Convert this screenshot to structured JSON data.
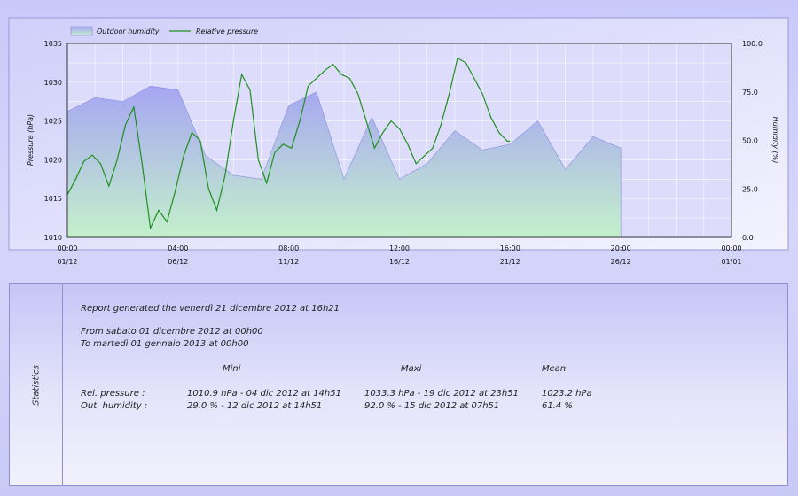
{
  "colors": {
    "humidity_top": "#a6a6f2",
    "humidity_bottom": "#c4f0cc",
    "pressure_line": "#1f8f1f",
    "plot_bg": "#ddddfb",
    "grid": "#ffffff"
  },
  "chart_data": {
    "type": "area",
    "legend": {
      "placement": "top-left",
      "items": [
        "Outdoor humidity",
        "Relative pressure"
      ]
    },
    "grid": true,
    "x_ticks": [
      {
        "time": "00:00",
        "date": "01/12"
      },
      {
        "time": "04:00",
        "date": "06/12"
      },
      {
        "time": "08:00",
        "date": "11/12"
      },
      {
        "time": "12:00",
        "date": "16/12"
      },
      {
        "time": "16:00",
        "date": "21/12"
      },
      {
        "time": "20:00",
        "date": "26/12"
      },
      {
        "time": "00:00",
        "date": "01/01"
      }
    ],
    "left_axis": {
      "label": "Pressure (hPa)",
      "ylim": [
        1010,
        1035
      ],
      "ticks": [
        "1035",
        "1030",
        "1025",
        "1020",
        "1015",
        "1010"
      ]
    },
    "right_axis": {
      "label": "Humidity (%)",
      "ylim": [
        0,
        100
      ],
      "ticks": [
        "100.0",
        "75.0",
        "50.0",
        "25.0",
        "0.0"
      ]
    },
    "series": [
      {
        "name": "Outdoor humidity",
        "axis": "right",
        "style": "area",
        "x": [
          0,
          1,
          2,
          3,
          4,
          5,
          6,
          7,
          8,
          9,
          10,
          11,
          12,
          13,
          14,
          15,
          16,
          17,
          18,
          19,
          20
        ],
        "y": [
          65,
          72,
          70,
          78,
          76,
          42,
          32,
          30,
          68,
          75,
          30,
          62,
          30,
          38,
          55,
          45,
          48,
          60,
          35,
          52,
          46
        ]
      },
      {
        "name": "Relative pressure",
        "axis": "left",
        "style": "line",
        "x": [
          0,
          0.3,
          0.6,
          0.9,
          1.2,
          1.5,
          1.8,
          2.1,
          2.4,
          2.7,
          3.0,
          3.3,
          3.6,
          3.9,
          4.2,
          4.5,
          4.8,
          5.1,
          5.4,
          5.7,
          6.0,
          6.3,
          6.6,
          6.9,
          7.2,
          7.5,
          7.8,
          8.1,
          8.4,
          8.7,
          9.0,
          9.3,
          9.6,
          9.9,
          10.2,
          10.5,
          10.8,
          11.1,
          11.4,
          11.7,
          12.0,
          12.3,
          12.6,
          12.9,
          13.2,
          13.5,
          13.8,
          14.1,
          14.4,
          14.7,
          15.0,
          15.3,
          15.6,
          15.9,
          16.0
        ],
        "y": [
          1015.5,
          1017.5,
          1019.8,
          1020.6,
          1019.5,
          1016.6,
          1020.0,
          1024.5,
          1026.8,
          1019.5,
          1011.2,
          1013.5,
          1012.0,
          1016.0,
          1020.5,
          1023.5,
          1022.5,
          1016.3,
          1013.5,
          1018.0,
          1025.0,
          1031.0,
          1029.0,
          1020.0,
          1017.0,
          1021.0,
          1022.0,
          1021.5,
          1025.0,
          1029.5,
          1030.5,
          1031.5,
          1032.3,
          1031.0,
          1030.5,
          1028.5,
          1025.0,
          1021.5,
          1023.5,
          1025.0,
          1024.0,
          1022.0,
          1019.5,
          1020.5,
          1021.5,
          1024.5,
          1028.5,
          1033.1,
          1032.5,
          1030.5,
          1028.5,
          1025.5,
          1023.5,
          1022.4,
          1022.4
        ]
      }
    ]
  },
  "stats": {
    "title": "Statistics",
    "generated": "Report generated the venerdì 21 dicembre 2012 at 16h21",
    "from": "From sabato 01 dicembre 2012 at 00h00",
    "to": "To martedì 01 gennaio 2013 at 00h00",
    "col_min": "Mini",
    "col_max": "Maxi",
    "col_mean": "Mean",
    "rows": [
      {
        "label": "Rel. pressure :",
        "min": "1010.9 hPa - 04 dic 2012 at 14h51",
        "max": "1033.3 hPa - 19 dic 2012 at 23h51",
        "mean": "1023.2 hPa"
      },
      {
        "label": "Out. humidity :",
        "min": "29.0 % - 12 dic 2012 at 14h51",
        "max": "92.0 % - 15 dic 2012 at 07h51",
        "mean": "61.4 %"
      }
    ]
  }
}
